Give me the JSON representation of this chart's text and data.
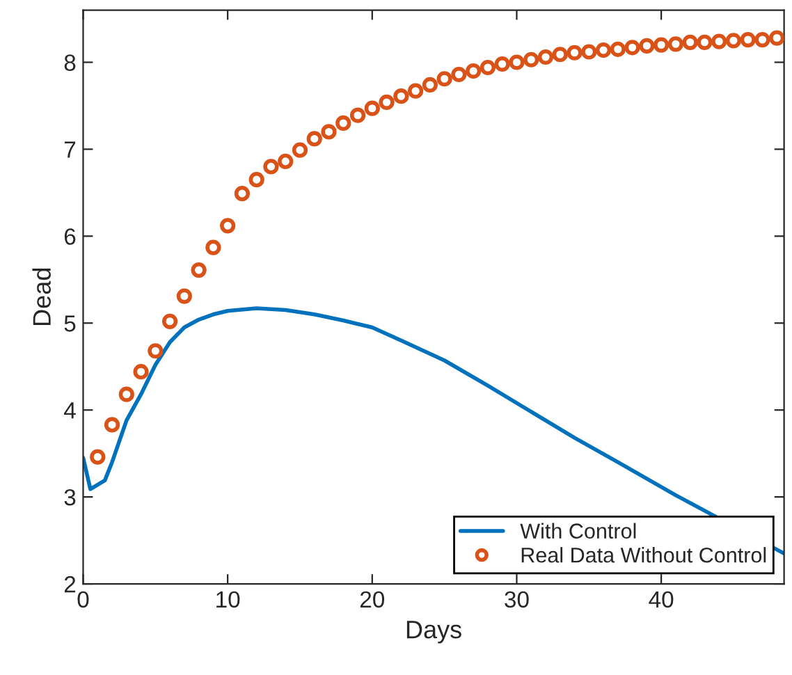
{
  "chart_data": {
    "type": "line",
    "xlabel": "Days",
    "ylabel": "Dead",
    "xlim": [
      0,
      48.5
    ],
    "xticks": [
      0,
      10,
      20,
      30,
      40
    ],
    "ylim": [
      2,
      8.6
    ],
    "yticks": [
      2,
      3,
      4,
      5,
      6,
      7,
      8
    ],
    "grid": false,
    "legend": "bottom right",
    "series": [
      {
        "name": "With Control",
        "color": "#0072bd",
        "line_style": "solid",
        "marker": "none",
        "x": [
          0,
          0.5,
          1.5,
          2,
          3,
          4,
          5,
          6,
          7,
          8,
          9,
          10,
          12,
          14,
          16,
          18,
          20,
          22,
          25,
          28,
          31,
          34,
          37,
          41,
          45,
          48.5
        ],
        "values": [
          3.45,
          3.09,
          3.19,
          3.4,
          3.88,
          4.18,
          4.52,
          4.78,
          4.95,
          5.04,
          5.1,
          5.14,
          5.17,
          5.15,
          5.1,
          5.03,
          4.95,
          4.8,
          4.57,
          4.28,
          3.98,
          3.68,
          3.4,
          3.02,
          null,
          2.35
        ]
      },
      {
        "name": "Real Data Without Control",
        "type": "scatter",
        "color": "#d95319",
        "marker": "circle",
        "x": [
          1,
          2,
          3,
          4,
          5,
          6,
          7,
          8,
          9,
          10,
          11,
          12,
          13,
          14,
          15,
          16,
          17,
          18,
          19,
          20,
          21,
          22,
          23,
          24,
          25,
          26,
          27,
          28,
          29,
          30,
          31,
          32,
          33,
          34,
          35,
          36,
          37,
          38,
          39,
          40,
          41,
          42,
          43,
          44,
          45,
          46,
          47,
          48
        ],
        "values": [
          3.46,
          3.83,
          4.18,
          4.44,
          4.68,
          5.02,
          5.31,
          5.61,
          5.87,
          6.12,
          6.49,
          6.65,
          6.8,
          6.86,
          6.99,
          7.12,
          7.2,
          7.3,
          7.39,
          7.47,
          7.54,
          7.61,
          7.67,
          7.74,
          7.81,
          7.86,
          7.9,
          7.94,
          7.98,
          8.0,
          8.03,
          8.06,
          8.09,
          8.11,
          8.12,
          8.14,
          8.15,
          8.17,
          8.19,
          8.2,
          8.21,
          8.23,
          8.23,
          8.24,
          8.25,
          8.26,
          8.26,
          8.28
        ]
      }
    ]
  }
}
